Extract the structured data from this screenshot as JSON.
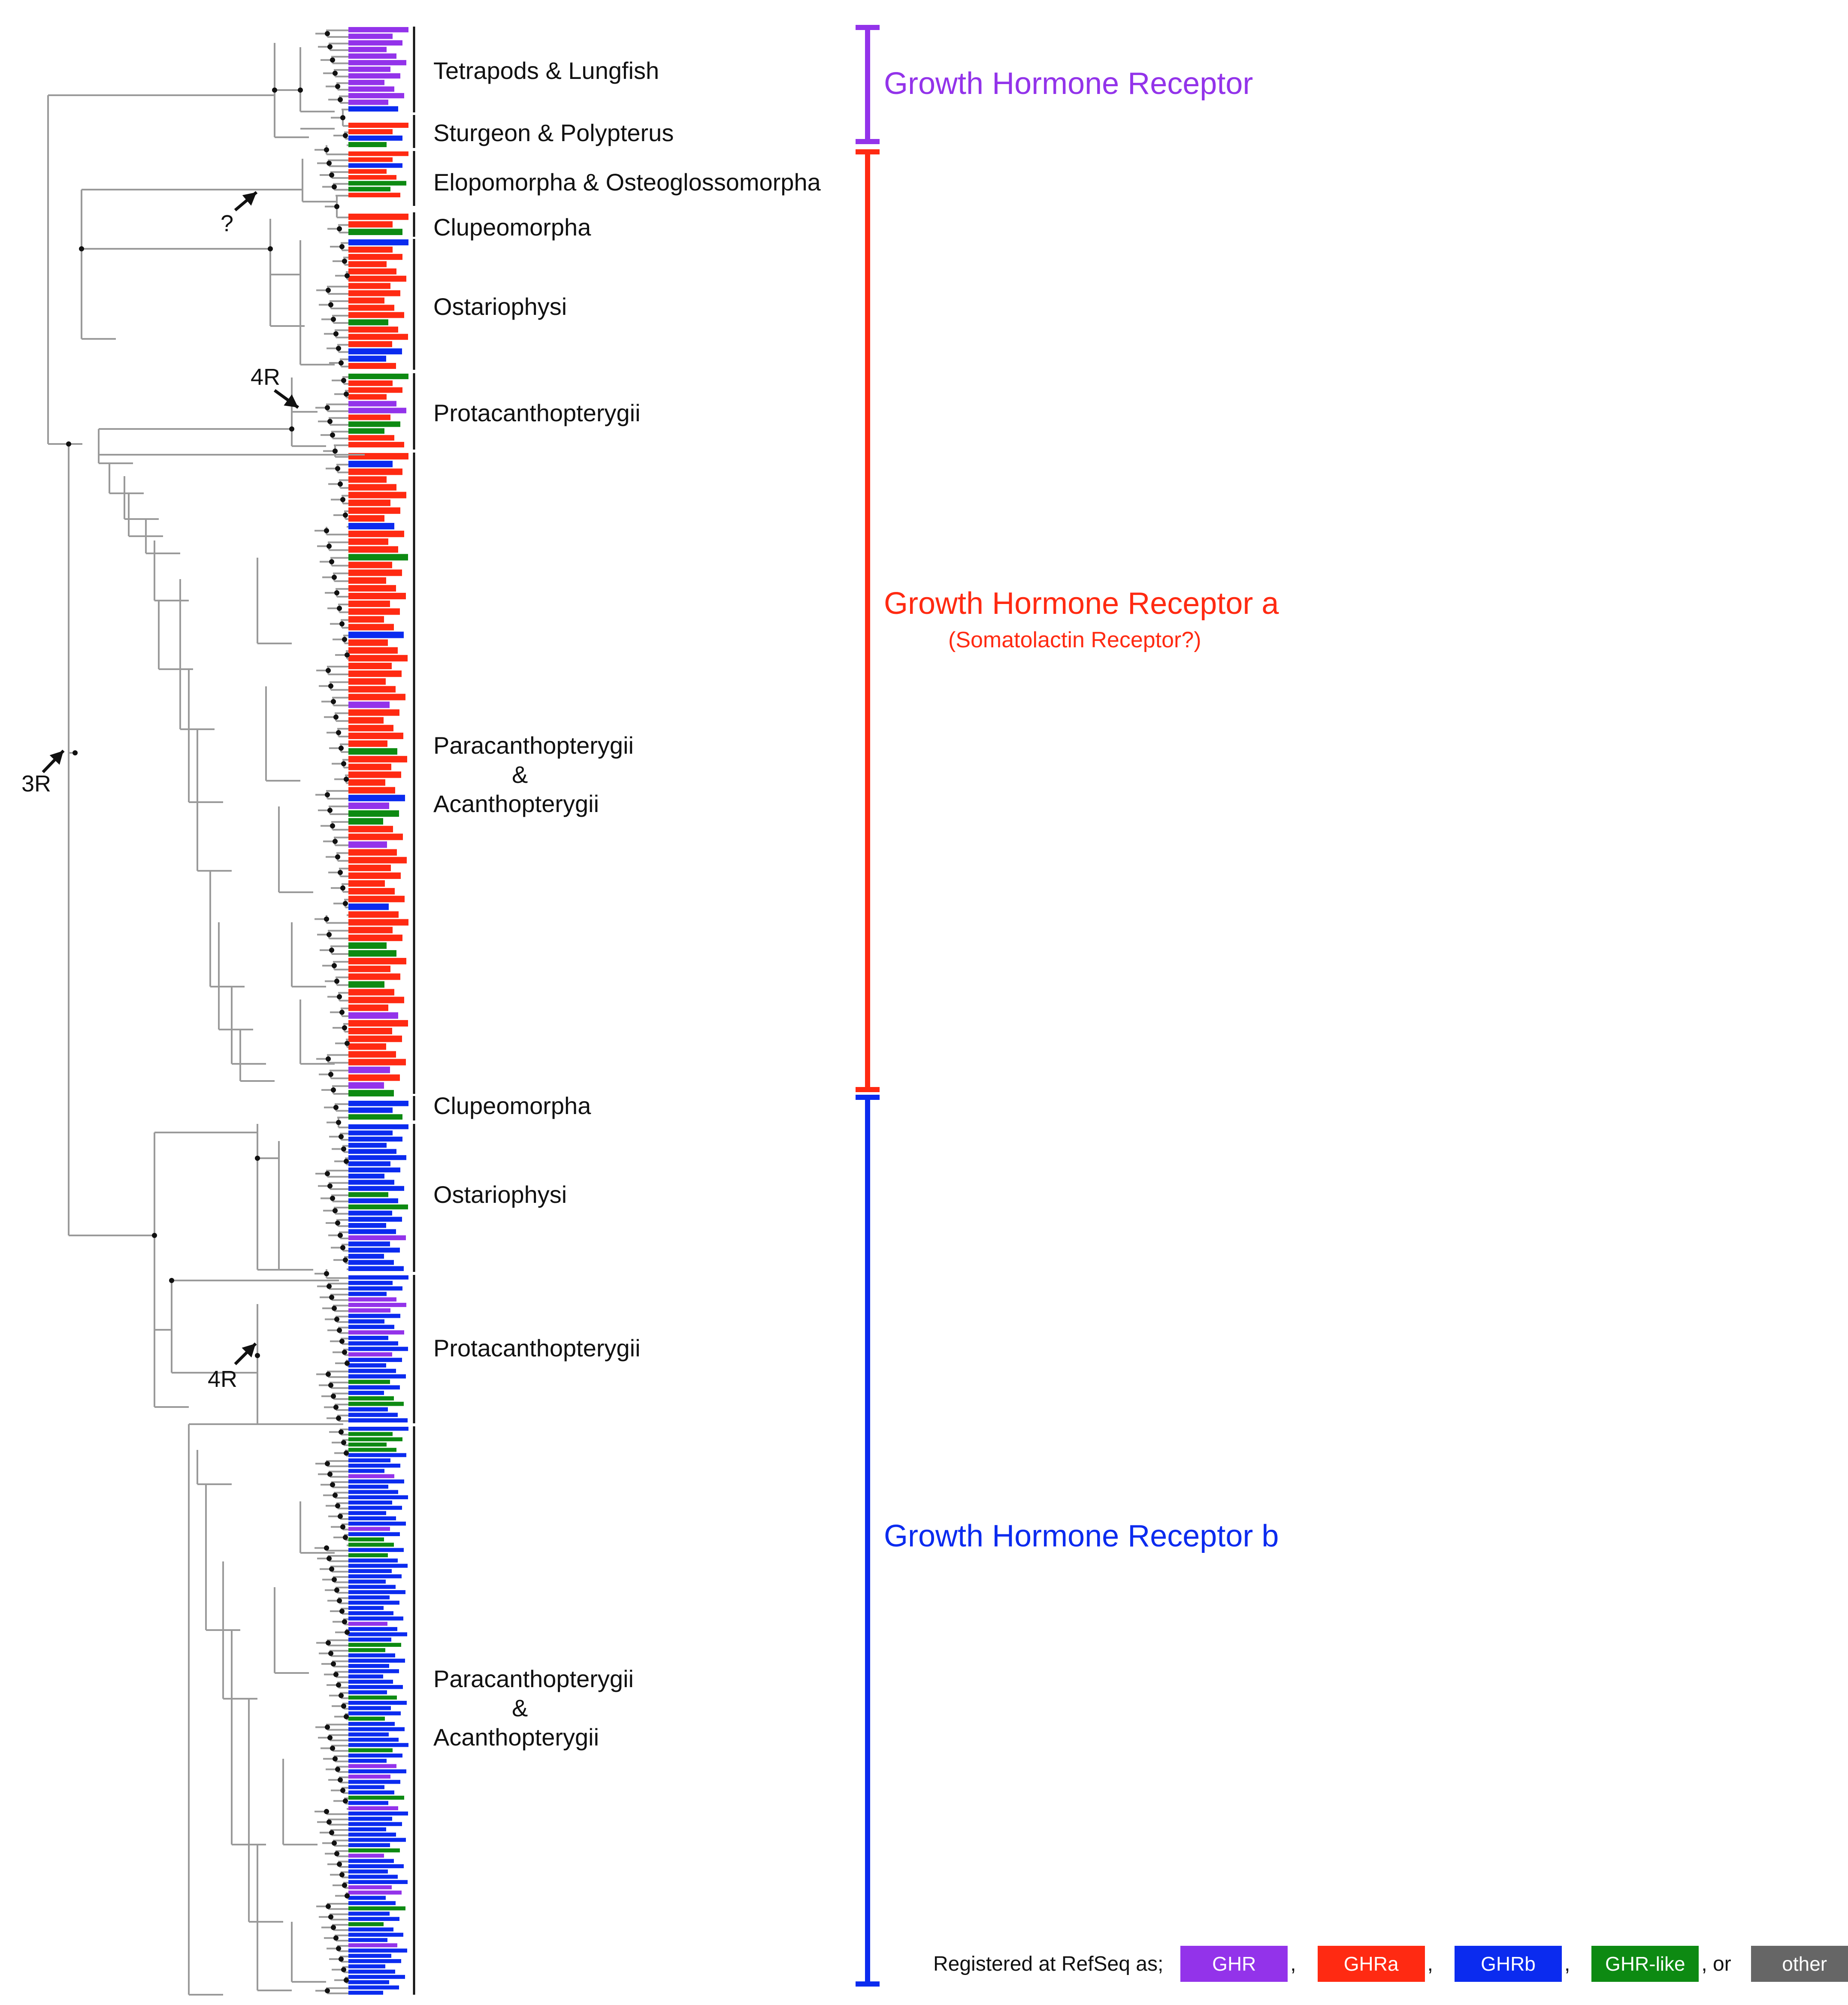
{
  "colors": {
    "ghr": "#9333ea",
    "ghra": "#ff2a12",
    "ghrb": "#0b2bef",
    "ghr_like": "#0d8a12",
    "other": "#555555",
    "branch": "#9a9a9a"
  },
  "groups": {
    "ghr": {
      "title": "Growth Hormone Receptor"
    },
    "ghra": {
      "title": "Growth Hormone Receptor a",
      "subtitle": "(Somatolactin Receptor?)"
    },
    "ghrb": {
      "title": "Growth Hormone Receptor b"
    }
  },
  "clades": [
    {
      "name": "Tetrapods & Lungfish"
    },
    {
      "name": "Sturgeon & Polypterus"
    },
    {
      "name": "Elopomorpha & Osteoglossomorpha"
    },
    {
      "name": "Clupeomorpha"
    },
    {
      "name": "Ostariophysi"
    },
    {
      "name": "Protacanthopterygii"
    },
    {
      "name_line1": "Paracanthopterygii",
      "name_line2": "&",
      "name_line3": "Acanthopterygii"
    },
    {
      "name": "Clupeomorpha"
    },
    {
      "name": "Ostariophysi"
    },
    {
      "name": "Protacanthopterygii"
    },
    {
      "name_line1": "Paracanthopterygii",
      "name_line2": "&",
      "name_line3": "Acanthopterygii"
    }
  ],
  "annotations": {
    "duplication_3r": "3R",
    "duplication_4r_a": "4R",
    "duplication_4r_b": "4R",
    "uncertain": "?"
  },
  "legend": {
    "intro": "Registered at RefSeq as;",
    "items": [
      {
        "label": "GHR",
        "color": "#9333ea"
      },
      {
        "label": "GHRa",
        "color": "#ff2a12"
      },
      {
        "label": "GHRb",
        "color": "#0b2bef"
      },
      {
        "label": "GHR-like",
        "color": "#0d8a12"
      },
      {
        "label": "other",
        "color": "#666666"
      }
    ],
    "sep1": ",",
    "sep2": ",",
    "sep3": ",",
    "sep4": ", or",
    "end": "."
  },
  "taxa": {
    "block_tetrapods": [
      "ghr",
      "ghr",
      "ghr",
      "ghr",
      "ghr",
      "ghr",
      "ghr",
      "ghr",
      "ghr",
      "ghr",
      "ghr",
      "ghr",
      "ghrb"
    ],
    "block_sturgeon": [
      "ghra",
      "ghra",
      "ghrb",
      "ghr_like"
    ],
    "block_elopo": [
      "ghra",
      "ghra",
      "ghrb",
      "ghra",
      "ghra",
      "ghr_like",
      "ghr_like",
      "ghra"
    ],
    "block_clupeo_a": [
      "ghra",
      "ghra",
      "ghr_like"
    ],
    "block_ostario_a": [
      "ghrb",
      "ghra",
      "ghra",
      "ghra",
      "ghra",
      "ghra",
      "ghra",
      "ghra",
      "ghra",
      "ghra",
      "ghra",
      "ghr_like",
      "ghra",
      "ghra",
      "ghra",
      "ghrb",
      "ghrb",
      "ghra"
    ],
    "block_protac_a": [
      "ghr_like",
      "ghra",
      "ghra",
      "ghra",
      "ghr",
      "ghr",
      "ghra",
      "ghr_like",
      "ghr_like",
      "ghra",
      "ghra"
    ],
    "block_acanth_a": [
      "ghra",
      "ghrb",
      "ghra",
      "ghra",
      "ghra",
      "ghra",
      "ghra",
      "ghra",
      "ghra",
      "ghrb",
      "ghra",
      "ghra",
      "ghra",
      "ghr_like",
      "ghra",
      "ghra",
      "ghra",
      "ghra",
      "ghra",
      "ghra",
      "ghra",
      "ghra",
      "ghra",
      "ghrb",
      "ghra",
      "ghra",
      "ghra",
      "ghra",
      "ghra",
      "ghra",
      "ghra",
      "ghra",
      "ghr",
      "ghra",
      "ghra",
      "ghra",
      "ghra",
      "ghra",
      "ghr_like",
      "ghra",
      "ghra",
      "ghra",
      "ghra",
      "ghra",
      "ghrb",
      "ghr",
      "ghr_like",
      "ghr_like",
      "ghra",
      "ghra",
      "ghr",
      "ghra",
      "ghra",
      "ghra",
      "ghra",
      "ghra",
      "ghra",
      "ghra",
      "ghrb",
      "ghra",
      "ghra",
      "ghra",
      "ghra",
      "ghr_like",
      "ghr_like",
      "ghra",
      "ghra",
      "ghra",
      "ghr_like",
      "ghra",
      "ghra",
      "ghra",
      "ghr",
      "ghra",
      "ghra",
      "ghra",
      "ghra",
      "ghra",
      "ghra",
      "ghr",
      "ghra",
      "ghr",
      "ghr_like"
    ],
    "block_clupeo_b": [
      "ghrb",
      "ghrb",
      "ghr_like"
    ],
    "block_ostario_b": [
      "ghrb",
      "ghrb",
      "ghrb",
      "ghrb",
      "ghrb",
      "ghrb",
      "ghrb",
      "ghrb",
      "ghrb",
      "ghrb",
      "ghrb",
      "ghr_like",
      "ghrb",
      "ghr_like",
      "ghrb",
      "ghrb",
      "ghrb",
      "ghrb",
      "ghr",
      "ghrb",
      "ghrb",
      "ghrb",
      "ghrb",
      "ghrb"
    ],
    "block_protac_b": [
      "ghrb",
      "ghrb",
      "ghrb",
      "ghrb",
      "ghr",
      "ghr",
      "ghr",
      "ghrb",
      "ghrb",
      "ghrb",
      "ghr",
      "ghrb",
      "ghrb",
      "ghrb",
      "ghr",
      "ghrb",
      "ghrb",
      "ghrb",
      "ghrb",
      "ghr_like",
      "ghrb",
      "ghrb",
      "ghr_like",
      "ghr_like",
      "ghrb",
      "ghrb",
      "ghrb"
    ],
    "block_acanth_b": [
      "ghrb",
      "ghr_like",
      "ghr_like",
      "ghr_like",
      "ghr_like",
      "ghrb",
      "ghrb",
      "ghrb",
      "ghrb",
      "ghr",
      "ghrb",
      "ghrb",
      "ghrb",
      "ghrb",
      "ghrb",
      "ghrb",
      "ghrb",
      "ghrb",
      "ghrb",
      "ghr",
      "ghrb",
      "ghr_like",
      "ghr_like",
      "ghrb",
      "ghr_like",
      "ghrb",
      "ghrb",
      "ghrb",
      "ghrb",
      "ghrb",
      "ghrb",
      "ghrb",
      "ghrb",
      "ghrb",
      "ghrb",
      "ghrb",
      "ghrb",
      "ghr",
      "ghrb",
      "ghrb",
      "ghrb",
      "ghr_like",
      "ghr_like",
      "ghrb",
      "ghrb",
      "ghrb",
      "ghrb",
      "ghrb",
      "ghrb",
      "ghrb",
      "ghrb",
      "ghr_like",
      "ghrb",
      "ghrb",
      "ghrb",
      "ghr_like",
      "ghrb",
      "ghrb",
      "ghrb",
      "ghrb",
      "ghrb",
      "ghr_like",
      "ghrb",
      "ghrb",
      "ghr",
      "ghrb",
      "ghr",
      "ghrb",
      "ghrb",
      "ghrb",
      "ghr_like",
      "ghrb",
      "ghr",
      "ghrb",
      "ghrb",
      "ghrb",
      "ghrb",
      "ghrb",
      "ghrb",
      "ghrb",
      "ghr_like",
      "ghr",
      "ghrb",
      "ghrb",
      "ghrb",
      "ghrb",
      "ghrb",
      "ghr",
      "ghr",
      "ghrb",
      "ghrb",
      "ghr_like",
      "ghrb",
      "ghrb",
      "ghr_like",
      "ghrb",
      "ghrb",
      "ghrb",
      "ghr",
      "ghrb",
      "ghrb",
      "ghrb",
      "ghrb",
      "ghrb",
      "ghrb",
      "ghrb",
      "ghrb",
      "ghrb"
    ]
  }
}
